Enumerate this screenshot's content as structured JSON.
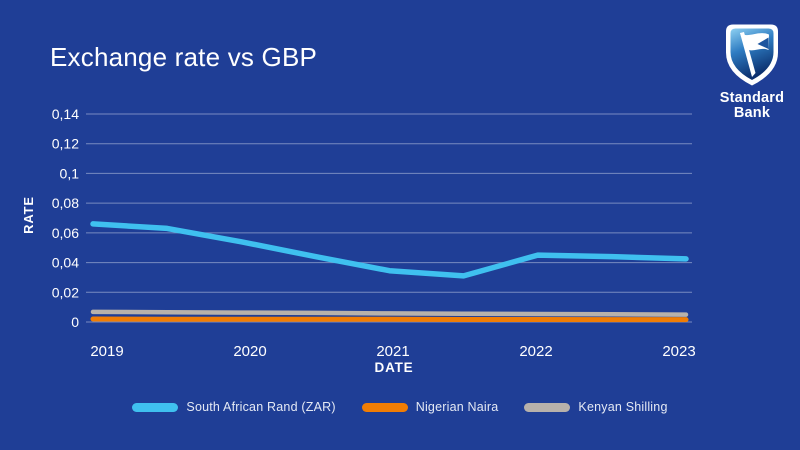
{
  "page": {
    "background_color": "#1f3e96",
    "text_color": "#ffffff"
  },
  "header": {
    "title": "Exchange rate vs GBP"
  },
  "logo": {
    "brand_line1": "Standard",
    "brand_line2": "Bank",
    "shield_colors": {
      "border": "#ffffff",
      "top": "#8ed1f2",
      "mid": "#2e7cc2",
      "bottom": "#0b2f6d"
    }
  },
  "chart_data": {
    "type": "line",
    "title": "Exchange rate vs GBP",
    "xlabel": "DATE",
    "ylabel": "RATE",
    "x_ticks": [
      "2019",
      "2020",
      "2021",
      "2022",
      "2023"
    ],
    "x_tick_values": [
      2019,
      2020,
      2021,
      2022,
      2023
    ],
    "y_ticks": [
      "0,14",
      "0,12",
      "0,1",
      "0,08",
      "0,06",
      "0,04",
      "0,02",
      "0"
    ],
    "y_tick_values": [
      0.14,
      0.12,
      0.1,
      0.08,
      0.06,
      0.04,
      0.02,
      0
    ],
    "ylim": [
      0,
      0.14
    ],
    "xlim": [
      2019,
      2023
    ],
    "grid": "horizontal",
    "gridline_color": "rgba(210,216,235,0.5)",
    "tick_label_color": "#ffffff",
    "legend_position": "bottom",
    "decimal_separator": ",",
    "series": [
      {
        "name": "South African Rand (ZAR)",
        "color": "#3fc0ef",
        "line_width": 5.5,
        "x": [
          2019,
          2019.5,
          2020,
          2020.5,
          2021,
          2021.5,
          2022,
          2022.5,
          2023
        ],
        "values": [
          0.066,
          0.063,
          0.054,
          0.044,
          0.0345,
          0.031,
          0.045,
          0.044,
          0.0425
        ]
      },
      {
        "name": "Nigerian Naira",
        "color": "#f07d05",
        "line_width": 5,
        "x": [
          2019,
          2019.5,
          2020,
          2020.5,
          2021,
          2021.5,
          2022,
          2022.5,
          2023
        ],
        "values": [
          0.002,
          0.0019,
          0.0019,
          0.0018,
          0.0018,
          0.0017,
          0.0017,
          0.0016,
          0.0016
        ]
      },
      {
        "name": "Kenyan Shilling",
        "color": "#b7b1ab",
        "line_width": 4.5,
        "x": [
          2019,
          2019.5,
          2020,
          2020.5,
          2021,
          2021.5,
          2022,
          2022.5,
          2023
        ],
        "values": [
          0.0068,
          0.0066,
          0.0063,
          0.0061,
          0.0058,
          0.0056,
          0.0054,
          0.0052,
          0.005
        ]
      }
    ]
  }
}
